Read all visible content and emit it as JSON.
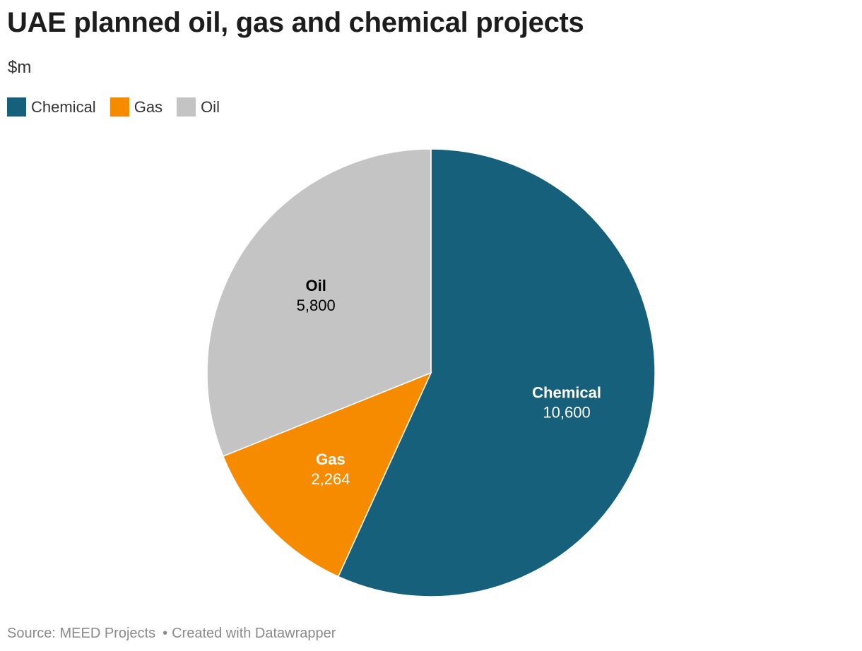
{
  "header": {
    "title": "UAE planned oil, gas and chemical projects",
    "subtitle": "$m"
  },
  "legend": [
    {
      "label": "Chemical",
      "color": "#17607b"
    },
    {
      "label": "Gas",
      "color": "#f68b00"
    },
    {
      "label": "Oil",
      "color": "#c4c4c4"
    }
  ],
  "chart_data": {
    "type": "pie",
    "slices": [
      {
        "label": "Chemical",
        "value": 10600,
        "display": "10,600",
        "color": "#17607b",
        "label_color": "#ffffff"
      },
      {
        "label": "Gas",
        "value": 2264,
        "display": "2,264",
        "color": "#f68b00",
        "label_color": "#ffffff"
      },
      {
        "label": "Oil",
        "value": 5800,
        "display": "5,800",
        "color": "#c4c4c4",
        "label_color": "#000000"
      }
    ],
    "start": "12 o'clock",
    "direction": "clockwise"
  },
  "footer": {
    "source": "Source: MEED Projects",
    "separator": "•",
    "credit": "Created with Datawrapper"
  }
}
